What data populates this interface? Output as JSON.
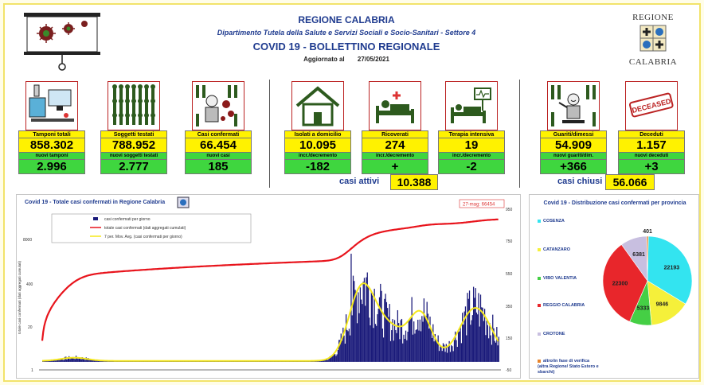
{
  "header": {
    "title": "REGIONE CALABRIA",
    "dept": "Dipartimento Tutela della Salute e Servizi Sociali e Socio-Sanitari - Settore 4",
    "bulletin": "COVID 19 - BOLLETTINO REGIONALE",
    "updated_label": "Aggiornato al",
    "updated_date": "27/05/2021"
  },
  "logo": {
    "line1": "REGIONE",
    "line2": "CALABRIA"
  },
  "cards": [
    {
      "id": "tamponi",
      "label": "Tamponi totali",
      "value": "858.302",
      "sub_label": "nuovi tamponi",
      "sub_value": "2.996",
      "icon": "lab-equipment-icon"
    },
    {
      "id": "soggetti",
      "label": "Soggetti testati",
      "value": "788.952",
      "sub_label": "nuovi soggetti testati",
      "sub_value": "2.777",
      "icon": "crowd-icon"
    },
    {
      "id": "casi",
      "label": "Casi confermati",
      "value": "66.454",
      "sub_label": "nuovi casi",
      "sub_value": "185",
      "icon": "virus-person-icon"
    },
    {
      "id": "isolati",
      "label": "Isolati a domicilio",
      "value": "10.095",
      "sub_label": "incr./decremento",
      "sub_value": "-182",
      "icon": "house-icon"
    },
    {
      "id": "ricoverati",
      "label": "Ricoverati",
      "value": "274",
      "sub_label": "incr./decremento",
      "sub_value": "+",
      "icon": "hospital-bed-icon"
    },
    {
      "id": "terapia",
      "label": "Terapia intensiva",
      "value": "19",
      "sub_label": "incr./decremento",
      "sub_value": "-2",
      "icon": "icu-bed-icon"
    },
    {
      "id": "guariti",
      "label": "Guariti/dimessi",
      "value": "54.909",
      "sub_label": "nuovi guariti/dim.",
      "sub_value": "+366",
      "icon": "recovered-person-icon"
    },
    {
      "id": "deceduti",
      "label": "Deceduti",
      "value": "1.157",
      "sub_label": "nuovi deceduti",
      "sub_value": "+3",
      "icon": "deceased-stamp-icon"
    }
  ],
  "deceased_stamp_text": "DECEASED",
  "summary": {
    "attivi_label": "casi attivi",
    "attivi_value": "10.388",
    "chiusi_label": "casi chiusi",
    "chiusi_value": "56.066"
  },
  "colors": {
    "title_blue": "#1f3b8f",
    "yellow": "#fff200",
    "green": "#3fd63f",
    "bars": "#1a1a7a",
    "cumulative": "#e8141c",
    "moving_avg": "#f5e81b"
  },
  "chart_data": [
    {
      "type": "bar",
      "title": "Covid 19 - Totale casi confermati in Regione Calabria",
      "annotation": "27-mag: 66454",
      "ylabel_left": "totale casi confermati (dati aggregati cumulati)",
      "left_ticks": [
        "8000",
        "400",
        "20",
        "1"
      ],
      "right_ticks": [
        "950",
        "750",
        "550",
        "350",
        "150",
        "-50"
      ],
      "legend": [
        "casi confermati per giorno",
        "totale casi confermati (dati aggregati cumulati)",
        "7 per. Mov. Avg. (casi confermati per giorno)"
      ],
      "grid": false,
      "legend_placement": "top-left",
      "x_range": [
        "2020-03-01",
        "2021-05-27"
      ],
      "daily_right_axis_range": [
        -50,
        950
      ],
      "cumulative_final": 66454,
      "moving_avg_peaks": [
        {
          "period": "2020-11",
          "value": 430
        },
        {
          "period": "2021-01",
          "value": 280
        },
        {
          "period": "2021-04",
          "value": 330
        }
      ]
    },
    {
      "type": "pie",
      "title": "Covid 19 - Distribuzione casi confermati per provincia",
      "labels": [
        "COSENZA",
        "CATANZARO",
        "VIBO VALENTIA",
        "REGGIO CALABRIA",
        "CROTONE",
        "altro/in fase di verifica (altra Regione/ Stato Estero e sbarchi)"
      ],
      "values": [
        22193,
        9846,
        5333,
        22300,
        6381,
        401
      ],
      "colors": [
        "#33e4f0",
        "#f5f03a",
        "#45cf45",
        "#e8262b",
        "#c8bfe0",
        "#e8842a"
      ]
    }
  ]
}
